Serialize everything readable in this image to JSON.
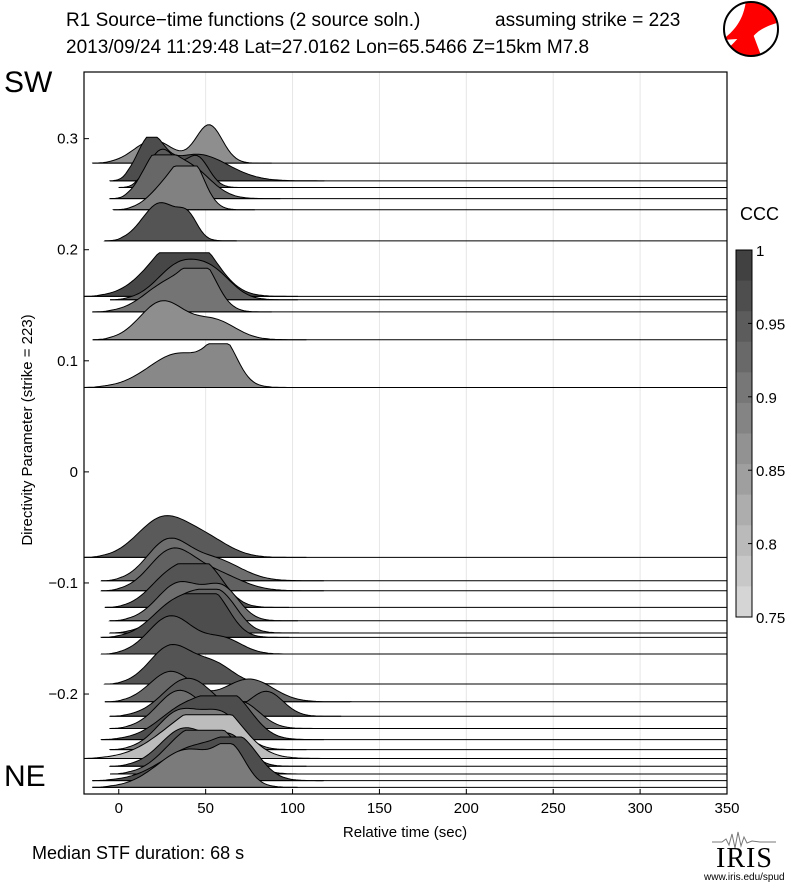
{
  "header": {
    "title_left": "R1 Source−time functions (2 source soln.)",
    "title_right": "assuming strike = 223",
    "subtitle": "2013/09/24 11:29:48  Lat=27.0162 Lon=65.5466  Z=15km  M7.8"
  },
  "labels": {
    "sw": "SW",
    "ne": "NE",
    "median": "Median STF duration: 68 s"
  },
  "footer": {
    "iris_logo": "IRIS",
    "url": "www.iris.edu/spud"
  },
  "icons": {
    "beachball": "focal-mechanism-beachball-icon"
  },
  "chart_data": {
    "type": "area",
    "title": "R1 Source−time functions (2 source soln.)",
    "xlabel": "Relative time (sec)",
    "ylabel": "Directivity Parameter (strike = 223)",
    "xlim": [
      -20,
      350
    ],
    "ylim": [
      -0.29,
      0.36
    ],
    "xticks": [
      0,
      50,
      100,
      150,
      200,
      250,
      300,
      350
    ],
    "yticks": [
      0.3,
      0.2,
      0.1,
      0,
      -0.1,
      -0.2
    ],
    "ytick_labels": [
      "0.3",
      "0.2",
      "0.1",
      "0",
      "−0.1",
      "−0.2"
    ],
    "grid": "vertical",
    "colorbar": {
      "title": "CCC",
      "min": 0.75,
      "max": 1,
      "ticks": [
        "1",
        "0.95",
        "0.9",
        "0.85",
        "0.8",
        "0.75"
      ]
    },
    "colors": {
      "darkest": "#3a3a3a",
      "lightest": "#dcdcdc",
      "line": "#000000"
    },
    "stations": [
      {
        "d": 0.278,
        "start": -15,
        "peak1": 20,
        "peak2": 52,
        "a1": 0.6,
        "a2": 1.0,
        "end": 80,
        "ccc": 0.87
      },
      {
        "d": 0.262,
        "start": -5,
        "peak1": 18,
        "peak2": 45,
        "a1": 1.0,
        "a2": 0.7,
        "end": 110,
        "ccc": 0.97
      },
      {
        "d": 0.256,
        "start": 0,
        "peak1": 25,
        "peak2": 45,
        "a1": 1.0,
        "a2": 0.8,
        "end": 70,
        "ccc": 0.95
      },
      {
        "d": 0.246,
        "start": -5,
        "peak1": 22,
        "peak2": 40,
        "a1": 1.0,
        "a2": 0.85,
        "end": 85,
        "ccc": 0.93
      },
      {
        "d": 0.236,
        "start": -3,
        "peak1": 30,
        "peak2": 42,
        "a1": 0.75,
        "a2": 1.0,
        "end": 70,
        "ccc": 0.89
      },
      {
        "d": 0.208,
        "start": -8,
        "peak1": 24,
        "peak2": 40,
        "a1": 1.0,
        "a2": 0.5,
        "end": 60,
        "ccc": 0.96
      },
      {
        "d": 0.158,
        "start": -20,
        "peak1": 30,
        "peak2": 45,
        "a1": 1.0,
        "a2": 0.9,
        "end": 95,
        "ccc": 0.98
      },
      {
        "d": 0.155,
        "start": -5,
        "peak1": 35,
        "peak2": 55,
        "a1": 0.9,
        "a2": 0.6,
        "end": 95,
        "ccc": 0.94
      },
      {
        "d": 0.144,
        "start": -15,
        "peak1": 30,
        "peak2": 48,
        "a1": 0.8,
        "a2": 1.0,
        "end": 80,
        "ccc": 0.91
      },
      {
        "d": 0.119,
        "start": -15,
        "peak1": 25,
        "peak2": 55,
        "a1": 1.0,
        "a2": 0.5,
        "end": 100,
        "ccc": 0.87
      },
      {
        "d": 0.076,
        "start": -20,
        "peak1": 35,
        "peak2": 60,
        "a1": 0.9,
        "a2": 1.0,
        "end": 90,
        "ccc": 0.88
      },
      {
        "d": -0.077,
        "start": -20,
        "peak1": 25,
        "peak2": 50,
        "a1": 1.0,
        "a2": 0.45,
        "end": 100,
        "ccc": 0.95
      },
      {
        "d": -0.098,
        "start": -10,
        "peak1": 28,
        "peak2": 55,
        "a1": 1.0,
        "a2": 0.55,
        "end": 110,
        "ccc": 0.92
      },
      {
        "d": -0.107,
        "start": -10,
        "peak1": 30,
        "peak2": 55,
        "a1": 1.0,
        "a2": 0.45,
        "end": 110,
        "ccc": 0.94
      },
      {
        "d": -0.122,
        "start": -8,
        "peak1": 30,
        "peak2": 50,
        "a1": 0.85,
        "a2": 1.0,
        "end": 90,
        "ccc": 0.96
      },
      {
        "d": -0.134,
        "start": -5,
        "peak1": 35,
        "peak2": 60,
        "a1": 1.0,
        "a2": 0.8,
        "end": 95,
        "ccc": 0.92
      },
      {
        "d": -0.145,
        "start": -5,
        "peak1": 40,
        "peak2": 60,
        "a1": 1.0,
        "a2": 0.7,
        "end": 95,
        "ccc": 0.94
      },
      {
        "d": -0.149,
        "start": -10,
        "peak1": 35,
        "peak2": 55,
        "a1": 1.0,
        "a2": 0.85,
        "end": 90,
        "ccc": 0.97
      },
      {
        "d": -0.164,
        "start": -10,
        "peak1": 30,
        "peak2": 60,
        "a1": 1.0,
        "a2": 0.4,
        "end": 100,
        "ccc": 0.95
      },
      {
        "d": -0.191,
        "start": -8,
        "peak1": 30,
        "peak2": 55,
        "a1": 1.0,
        "a2": 0.5,
        "end": 95,
        "ccc": 0.96
      },
      {
        "d": -0.207,
        "start": -8,
        "peak1": 30,
        "peak2": 75,
        "a1": 0.8,
        "a2": 0.6,
        "end": 125,
        "ccc": 0.93
      },
      {
        "d": -0.22,
        "start": -5,
        "peak1": 40,
        "peak2": 85,
        "a1": 1.0,
        "a2": 0.65,
        "end": 120,
        "ccc": 0.95
      },
      {
        "d": -0.231,
        "start": -5,
        "peak1": 35,
        "peak2": 70,
        "a1": 1.0,
        "a2": 0.7,
        "end": 110,
        "ccc": 0.92
      },
      {
        "d": -0.241,
        "start": -10,
        "peak1": 40,
        "peak2": 65,
        "a1": 0.9,
        "a2": 1.0,
        "end": 110,
        "ccc": 0.97
      },
      {
        "d": -0.25,
        "start": -5,
        "peak1": 35,
        "peak2": 60,
        "a1": 1.0,
        "a2": 0.85,
        "end": 100,
        "ccc": 0.9
      },
      {
        "d": -0.258,
        "start": -20,
        "peak1": 42,
        "peak2": 60,
        "a1": 1.0,
        "a2": 0.7,
        "end": 110,
        "ccc": 0.8
      },
      {
        "d": -0.265,
        "start": -5,
        "peak1": 38,
        "peak2": 65,
        "a1": 1.0,
        "a2": 0.7,
        "end": 100,
        "ccc": 0.96
      },
      {
        "d": -0.272,
        "start": -5,
        "peak1": 40,
        "peak2": 60,
        "a1": 1.0,
        "a2": 0.8,
        "end": 105,
        "ccc": 0.93
      },
      {
        "d": -0.278,
        "start": -15,
        "peak1": 45,
        "peak2": 70,
        "a1": 0.9,
        "a2": 0.8,
        "end": 110,
        "ccc": 0.97
      },
      {
        "d": -0.284,
        "start": -15,
        "peak1": 40,
        "peak2": 65,
        "a1": 1.0,
        "a2": 0.8,
        "end": 95,
        "ccc": 0.9
      }
    ]
  }
}
